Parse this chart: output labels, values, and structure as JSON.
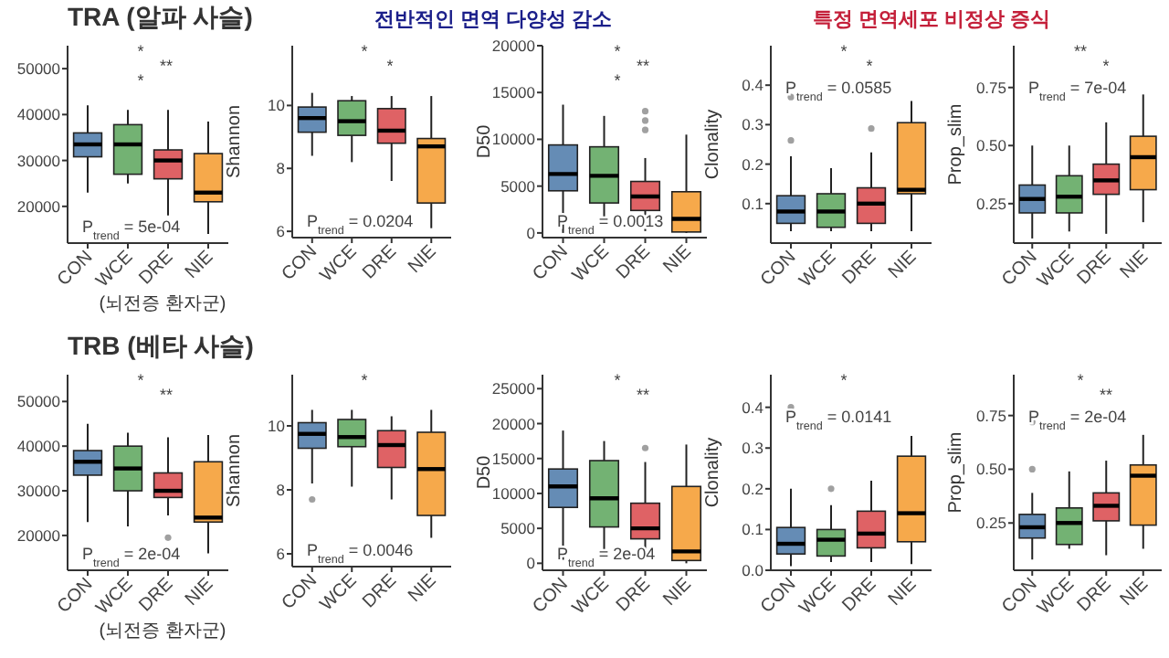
{
  "chart_data": [
    {
      "type": "box",
      "title": "TRA (알파 사슬)",
      "categories": [
        "CON",
        "WCE",
        "DRE",
        "NIE"
      ],
      "colors": [
        "#4a78a8",
        "#5aa55a",
        "#d9464a",
        "#f59a2c"
      ],
      "ylim": [
        12000,
        55000
      ],
      "yticks": [
        20000,
        30000,
        40000,
        50000
      ],
      "boxes": [
        {
          "low": 23000,
          "q1": 30800,
          "median": 33500,
          "q3": 36000,
          "high": 42000
        },
        {
          "low": 25000,
          "q1": 27000,
          "median": 33500,
          "q3": 37800,
          "high": 41000
        },
        {
          "low": 18000,
          "q1": 26000,
          "median": 30000,
          "q3": 32300,
          "high": 41000
        },
        {
          "low": 14000,
          "q1": 21000,
          "median": 23000,
          "q3": 31500,
          "high": 38500
        }
      ],
      "annotations": [
        "P$_{trend}$ = 5e-04",
        "*",
        "**",
        "*",
        "(뇌전증 환자군)"
      ]
    },
    {
      "type": "box",
      "title": "전반적인 면역 다양성 감소",
      "ylabel": "Shannon",
      "categories": [
        "CON",
        "WCE",
        "DRE",
        "NIE"
      ],
      "colors": [
        "#4a78a8",
        "#5aa55a",
        "#d9464a",
        "#f59a2c"
      ],
      "ylim": [
        5.8,
        11.9
      ],
      "yticks": [
        6,
        8,
        10
      ],
      "boxes": [
        {
          "low": 8.4,
          "q1": 9.15,
          "median": 9.6,
          "q3": 9.95,
          "high": 10.4
        },
        {
          "low": 8.2,
          "q1": 9.05,
          "median": 9.5,
          "q3": 10.15,
          "high": 10.3
        },
        {
          "low": 7.6,
          "q1": 8.8,
          "median": 9.2,
          "q3": 9.9,
          "high": 10.3
        },
        {
          "low": 6.1,
          "q1": 6.9,
          "median": 8.7,
          "q3": 8.95,
          "high": 10.3
        }
      ],
      "annotations": [
        "P$_{trend}$ = 0.0204",
        "*",
        "*"
      ]
    },
    {
      "type": "box",
      "ylabel": "D50",
      "categories": [
        "CON",
        "WCE",
        "DRE",
        "NIE"
      ],
      "colors": [
        "#4a78a8",
        "#5aa55a",
        "#d9464a",
        "#f59a2c"
      ],
      "ylim": [
        -500,
        20000
      ],
      "yticks": [
        0,
        5000,
        10000,
        15000,
        20000
      ],
      "boxes": [
        {
          "low": 0,
          "q1": 4500,
          "median": 6300,
          "q3": 9400,
          "high": 13700
        },
        {
          "low": 800,
          "q1": 3200,
          "median": 6100,
          "q3": 9200,
          "high": 12500
        },
        {
          "low": 200,
          "q1": 2400,
          "median": 3900,
          "q3": 5500,
          "high": 8000,
          "outliers": [
            11000,
            12000,
            13000
          ]
        },
        {
          "low": 0,
          "q1": 100,
          "median": 1500,
          "q3": 4400,
          "high": 10500
        }
      ],
      "annotations": [
        "P$_{trend}$ = 0.0013",
        "*",
        "**",
        "*"
      ]
    },
    {
      "type": "box",
      "title": "특정 면역세포 비정상 증식",
      "ylabel": "Clonality",
      "categories": [
        "CON",
        "WCE",
        "DRE",
        "NIE"
      ],
      "colors": [
        "#4a78a8",
        "#5aa55a",
        "#d9464a",
        "#f59a2c"
      ],
      "ylim": [
        0,
        0.5
      ],
      "yticks": [
        0.1,
        0.2,
        0.3,
        0.4
      ],
      "boxes": [
        {
          "low": 0.03,
          "q1": 0.05,
          "median": 0.08,
          "q3": 0.12,
          "high": 0.22,
          "outliers": [
            0.26,
            0.37
          ]
        },
        {
          "low": 0.03,
          "q1": 0.04,
          "median": 0.08,
          "q3": 0.125,
          "high": 0.19
        },
        {
          "low": 0.03,
          "q1": 0.05,
          "median": 0.1,
          "q3": 0.14,
          "high": 0.23,
          "outliers": [
            0.29
          ]
        },
        {
          "low": 0.03,
          "q1": 0.125,
          "median": 0.135,
          "q3": 0.305,
          "high": 0.36
        }
      ],
      "annotations": [
        "P$_{trend}$ = 0.0585",
        "*",
        "*"
      ]
    },
    {
      "type": "box",
      "ylabel": "Prop_slim",
      "categories": [
        "CON",
        "WCE",
        "DRE",
        "NIE"
      ],
      "colors": [
        "#4a78a8",
        "#5aa55a",
        "#d9464a",
        "#f59a2c"
      ],
      "ylim": [
        0.08,
        0.93
      ],
      "yticks": [
        {
          "value": 0.25,
          "label": "0.25"
        },
        {
          "value": 0.5,
          "label": "0.50"
        },
        {
          "value": 0.75,
          "label": "0.75"
        }
      ],
      "boxes": [
        {
          "low": 0.1,
          "q1": 0.21,
          "median": 0.27,
          "q3": 0.33,
          "high": 0.5
        },
        {
          "low": 0.13,
          "q1": 0.21,
          "median": 0.28,
          "q3": 0.37,
          "high": 0.5
        },
        {
          "low": 0.12,
          "q1": 0.29,
          "median": 0.35,
          "q3": 0.42,
          "high": 0.6
        },
        {
          "low": 0.17,
          "q1": 0.31,
          "median": 0.45,
          "q3": 0.54,
          "high": 0.72
        }
      ],
      "annotations": [
        "P$_{trend}$ = 7e-04",
        "**",
        "*"
      ]
    },
    {
      "type": "box",
      "title": "TRB (베타 사슬)",
      "categories": [
        "CON",
        "WCE",
        "DRE",
        "NIE"
      ],
      "colors": [
        "#4a78a8",
        "#5aa55a",
        "#d9464a",
        "#f59a2c"
      ],
      "ylim": [
        12200,
        56000
      ],
      "yticks": [
        20000,
        30000,
        40000,
        50000
      ],
      "boxes": [
        {
          "low": 23000,
          "q1": 33500,
          "median": 36500,
          "q3": 39000,
          "high": 45000
        },
        {
          "low": 22000,
          "q1": 30000,
          "median": 35000,
          "q3": 40000,
          "high": 43000
        },
        {
          "low": 24500,
          "q1": 28500,
          "median": 30000,
          "q3": 34000,
          "high": 42000,
          "outliers": [
            19500
          ]
        },
        {
          "low": 16000,
          "q1": 23000,
          "median": 24000,
          "q3": 36500,
          "high": 42500
        }
      ],
      "annotations": [
        "P$_{trend}$ = 2e-04",
        "*",
        "**",
        "(뇌전증 환자군)"
      ]
    },
    {
      "type": "box",
      "ylabel": "Shannon",
      "categories": [
        "CON",
        "WCE",
        "DRE",
        "NIE"
      ],
      "colors": [
        "#4a78a8",
        "#5aa55a",
        "#d9464a",
        "#f59a2c"
      ],
      "ylim": [
        5.6,
        11.6
      ],
      "yticks": [
        6,
        8,
        10
      ],
      "boxes": [
        {
          "low": 8.2,
          "q1": 9.3,
          "median": 9.75,
          "q3": 10.1,
          "high": 10.5,
          "outliers": [
            7.7
          ]
        },
        {
          "low": 8.1,
          "q1": 9.35,
          "median": 9.65,
          "q3": 10.2,
          "high": 10.5
        },
        {
          "low": 7.7,
          "q1": 8.7,
          "median": 9.4,
          "q3": 9.85,
          "high": 10.3
        },
        {
          "low": 6.5,
          "q1": 7.2,
          "median": 8.65,
          "q3": 9.8,
          "high": 10.5
        }
      ],
      "annotations": [
        "P$_{trend}$ = 0.0046",
        "*"
      ]
    },
    {
      "type": "box",
      "ylabel": "D50",
      "categories": [
        "CON",
        "WCE",
        "DRE",
        "NIE"
      ],
      "colors": [
        "#4a78a8",
        "#5aa55a",
        "#d9464a",
        "#f59a2c"
      ],
      "ylim": [
        -1000,
        27000
      ],
      "yticks": [
        0,
        5000,
        10000,
        15000,
        20000,
        25000
      ],
      "boxes": [
        {
          "low": 500,
          "q1": 8000,
          "median": 11000,
          "q3": 13500,
          "high": 19000
        },
        {
          "low": 1000,
          "q1": 5200,
          "median": 9300,
          "q3": 14700,
          "high": 17500
        },
        {
          "low": 1500,
          "q1": 3500,
          "median": 5000,
          "q3": 8600,
          "high": 14500,
          "outliers": [
            16500
          ]
        },
        {
          "low": 0,
          "q1": 400,
          "median": 1700,
          "q3": 11000,
          "high": 17000
        }
      ],
      "annotations": [
        "P$_{trend}$ = 2e-04",
        "*",
        "**"
      ]
    },
    {
      "type": "box",
      "ylabel": "Clonality",
      "categories": [
        "CON",
        "WCE",
        "DRE",
        "NIE"
      ],
      "colors": [
        "#4a78a8",
        "#5aa55a",
        "#d9464a",
        "#f59a2c"
      ],
      "ylim": [
        0,
        0.48
      ],
      "yticks": [
        {
          "value": 0,
          "label": "0.0"
        },
        0.1,
        0.2,
        0.3,
        0.4
      ],
      "boxes": [
        {
          "low": 0.01,
          "q1": 0.04,
          "median": 0.065,
          "q3": 0.105,
          "high": 0.2,
          "outliers": [
            0.4
          ]
        },
        {
          "low": 0.02,
          "q1": 0.035,
          "median": 0.075,
          "q3": 0.1,
          "high": 0.16,
          "outliers": [
            0.2
          ]
        },
        {
          "low": 0.02,
          "q1": 0.055,
          "median": 0.09,
          "q3": 0.145,
          "high": 0.22
        },
        {
          "low": 0.015,
          "q1": 0.07,
          "median": 0.14,
          "q3": 0.28,
          "high": 0.33
        }
      ],
      "annotations": [
        "P$_{trend}$ = 0.0141",
        "*"
      ]
    },
    {
      "type": "box",
      "ylabel": "Prop_slim",
      "categories": [
        "CON",
        "WCE",
        "DRE",
        "NIE"
      ],
      "colors": [
        "#4a78a8",
        "#5aa55a",
        "#d9464a",
        "#f59a2c"
      ],
      "ylim": [
        0.03,
        0.94
      ],
      "yticks": [
        {
          "value": 0.25,
          "label": "0.25"
        },
        {
          "value": 0.5,
          "label": "0.50"
        },
        {
          "value": 0.75,
          "label": "0.75"
        }
      ],
      "boxes": [
        {
          "low": 0.08,
          "q1": 0.18,
          "median": 0.23,
          "q3": 0.29,
          "high": 0.39,
          "outliers": [
            0.5,
            0.72
          ]
        },
        {
          "low": 0.13,
          "q1": 0.15,
          "median": 0.25,
          "q3": 0.32,
          "high": 0.49
        },
        {
          "low": 0.1,
          "q1": 0.26,
          "median": 0.33,
          "q3": 0.39,
          "high": 0.54
        },
        {
          "low": 0.13,
          "q1": 0.24,
          "median": 0.47,
          "q3": 0.52,
          "high": 0.66
        }
      ],
      "annotations": [
        "P$_{trend}$ = 2e-04",
        "*",
        "**"
      ]
    }
  ]
}
